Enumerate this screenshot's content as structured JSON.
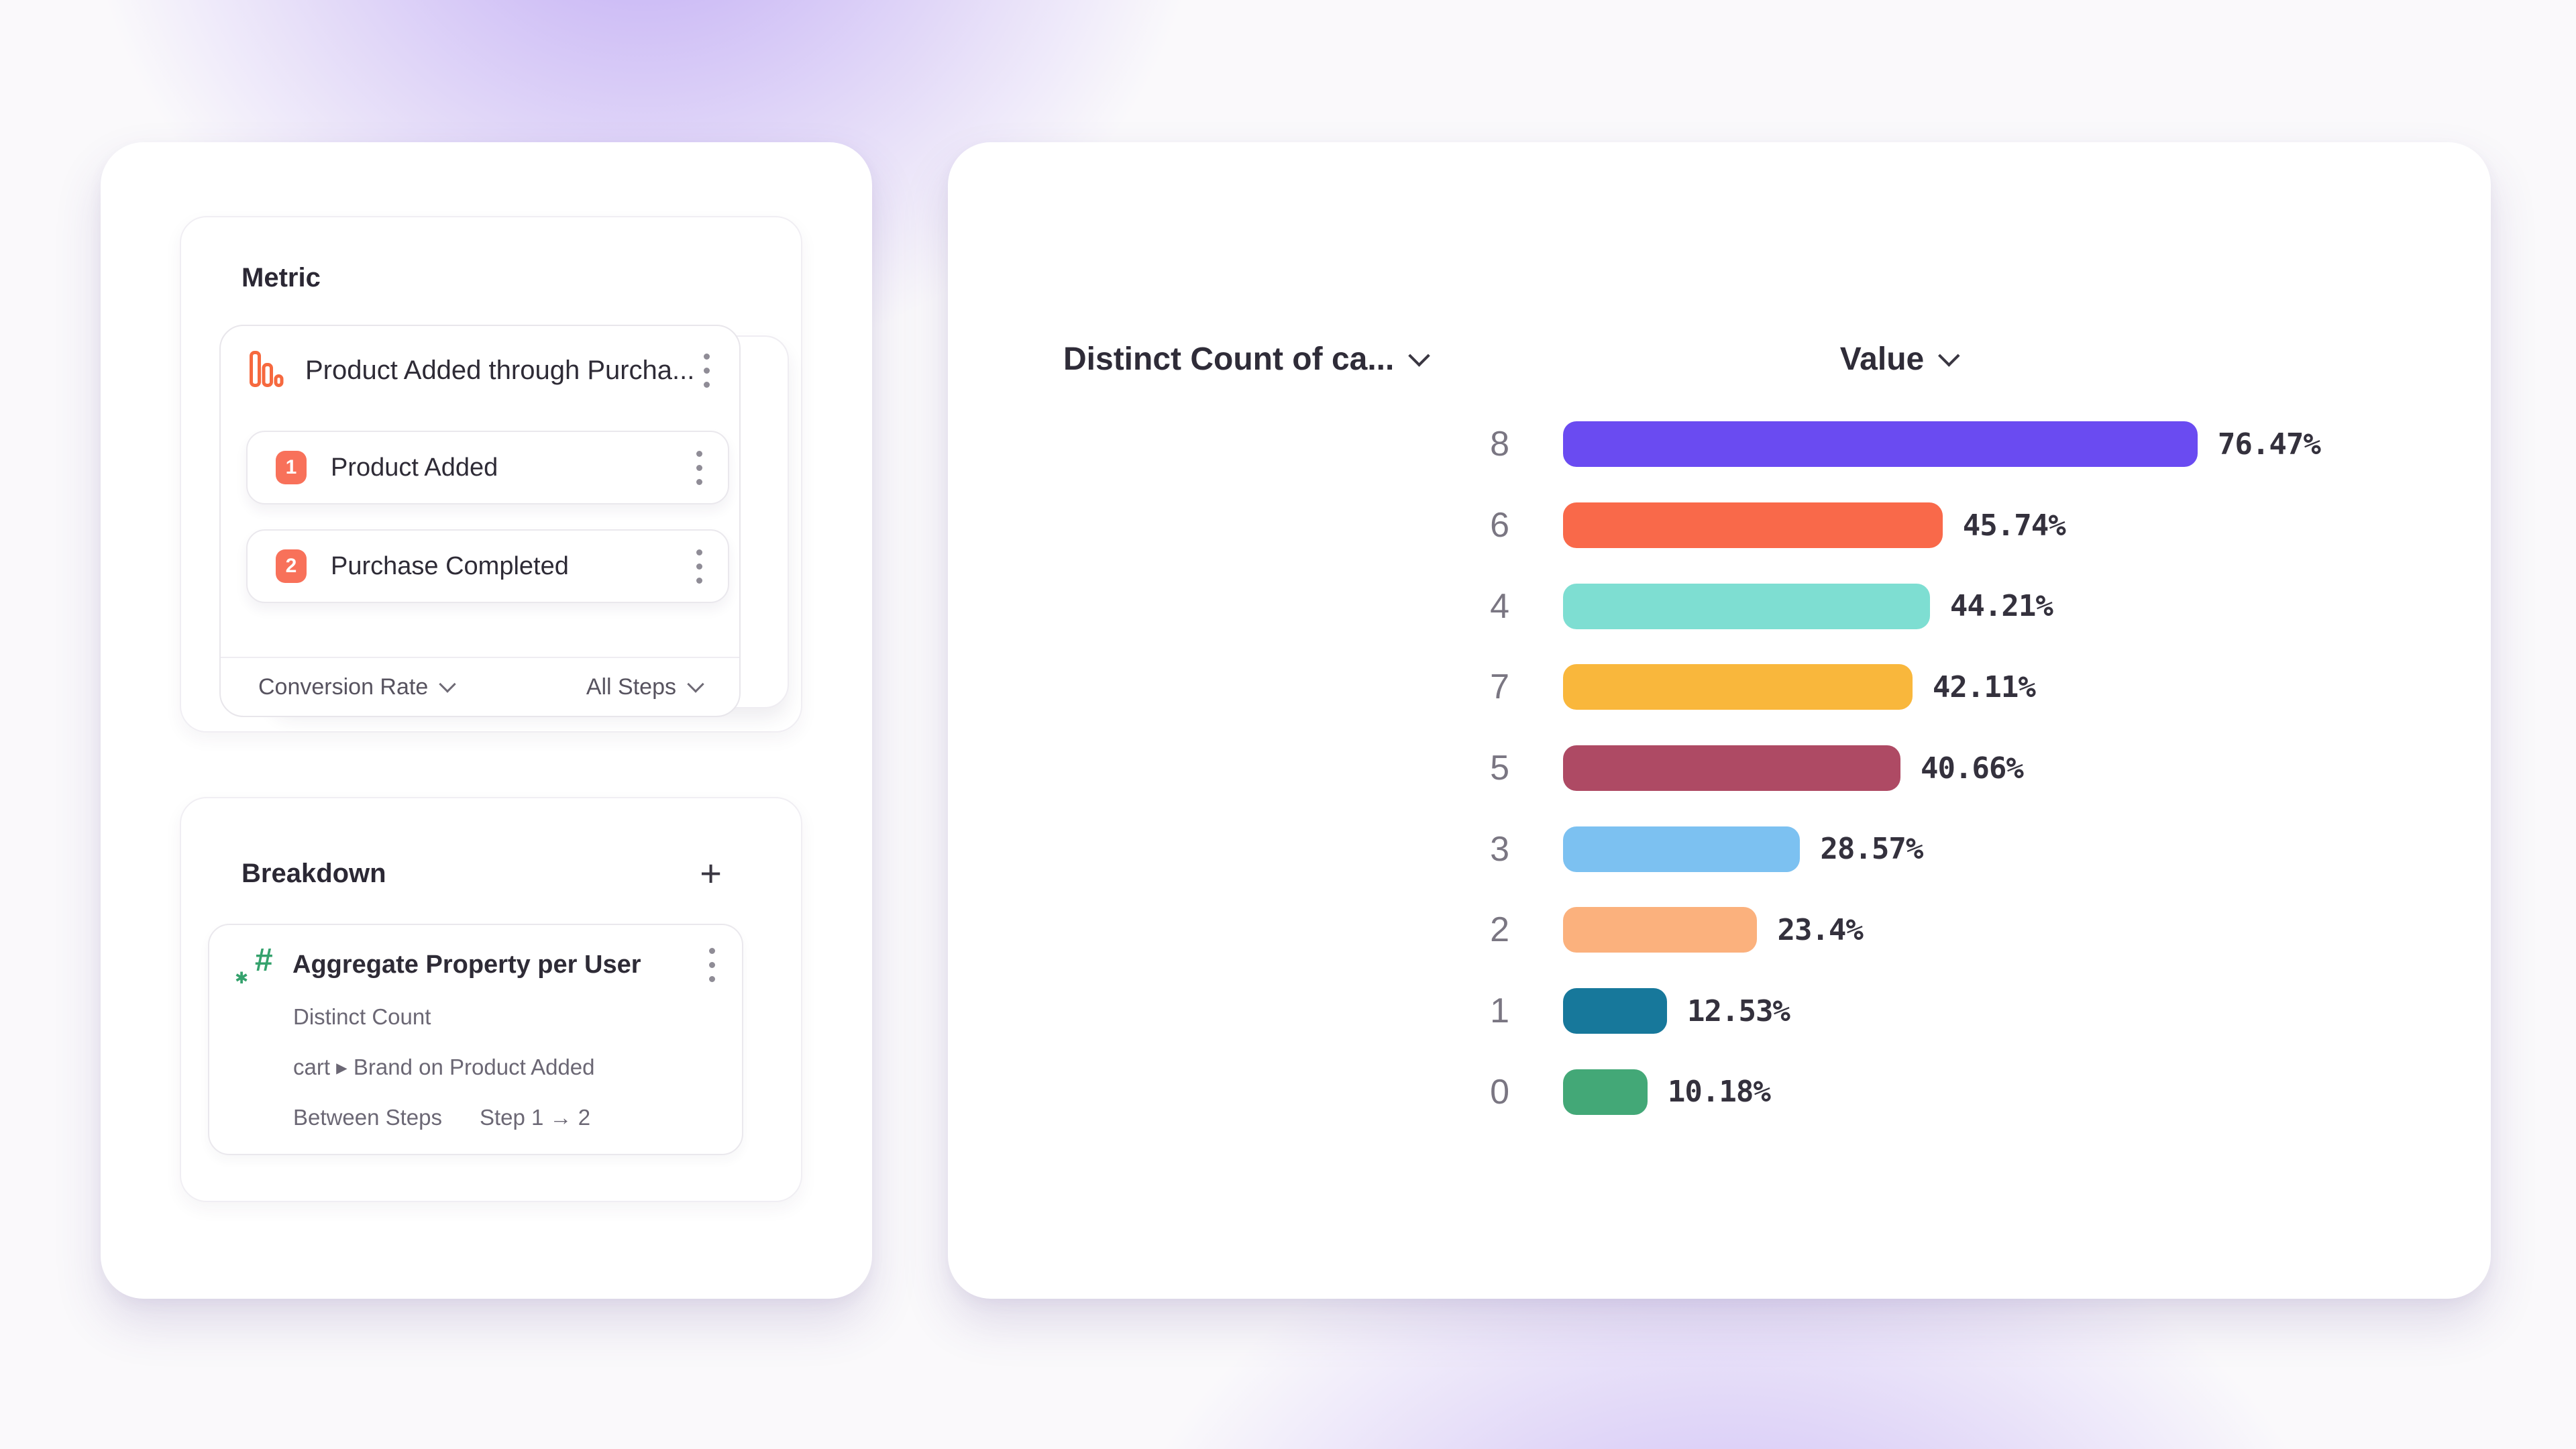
{
  "metric_panel": {
    "title": "Metric",
    "funnel": {
      "name": "Product Added through Purcha...",
      "steps": [
        {
          "index": "1",
          "label": "Product Added"
        },
        {
          "index": "2",
          "label": "Purchase Completed"
        }
      ],
      "conversion_label": "Conversion Rate",
      "scope_label": "All Steps"
    }
  },
  "breakdown_panel": {
    "title": "Breakdown",
    "add_button": "+",
    "item": {
      "title": "Aggregate Property per User",
      "aggregation": "Distinct Count",
      "property": "cart ▸ Brand on Product Added",
      "timing_label": "Between Steps",
      "timing_value": "Step 1 → 2"
    }
  },
  "chart_header": {
    "left": "Distinct Count of ca...",
    "right": "Value"
  },
  "chart_data": {
    "type": "bar",
    "orientation": "horizontal",
    "title": "Distinct Count of ca... vs Value",
    "categories": [
      "8",
      "6",
      "4",
      "7",
      "5",
      "3",
      "2",
      "1",
      "0"
    ],
    "values": [
      76.47,
      45.74,
      44.21,
      42.11,
      40.66,
      28.57,
      23.4,
      12.53,
      10.18
    ],
    "value_labels": [
      "76.47%",
      "45.74%",
      "44.21%",
      "42.11%",
      "40.66%",
      "28.57%",
      "23.4%",
      "12.53%",
      "10.18%"
    ],
    "bar_colors": [
      "#6A4BF1",
      "#F9694A",
      "#7EDED2",
      "#F9B73C",
      "#AE4A64",
      "#7CC1F1",
      "#FBB17D",
      "#17789B",
      "#43A877"
    ],
    "unit": "%",
    "xlim": [
      0,
      80
    ],
    "legend": "none",
    "grid": "off"
  },
  "colors": {
    "funnel_accent": "#F8715A",
    "badge": "#F8715A",
    "hash_icon": "#35A26D",
    "background_glow": "#8B63EE"
  }
}
